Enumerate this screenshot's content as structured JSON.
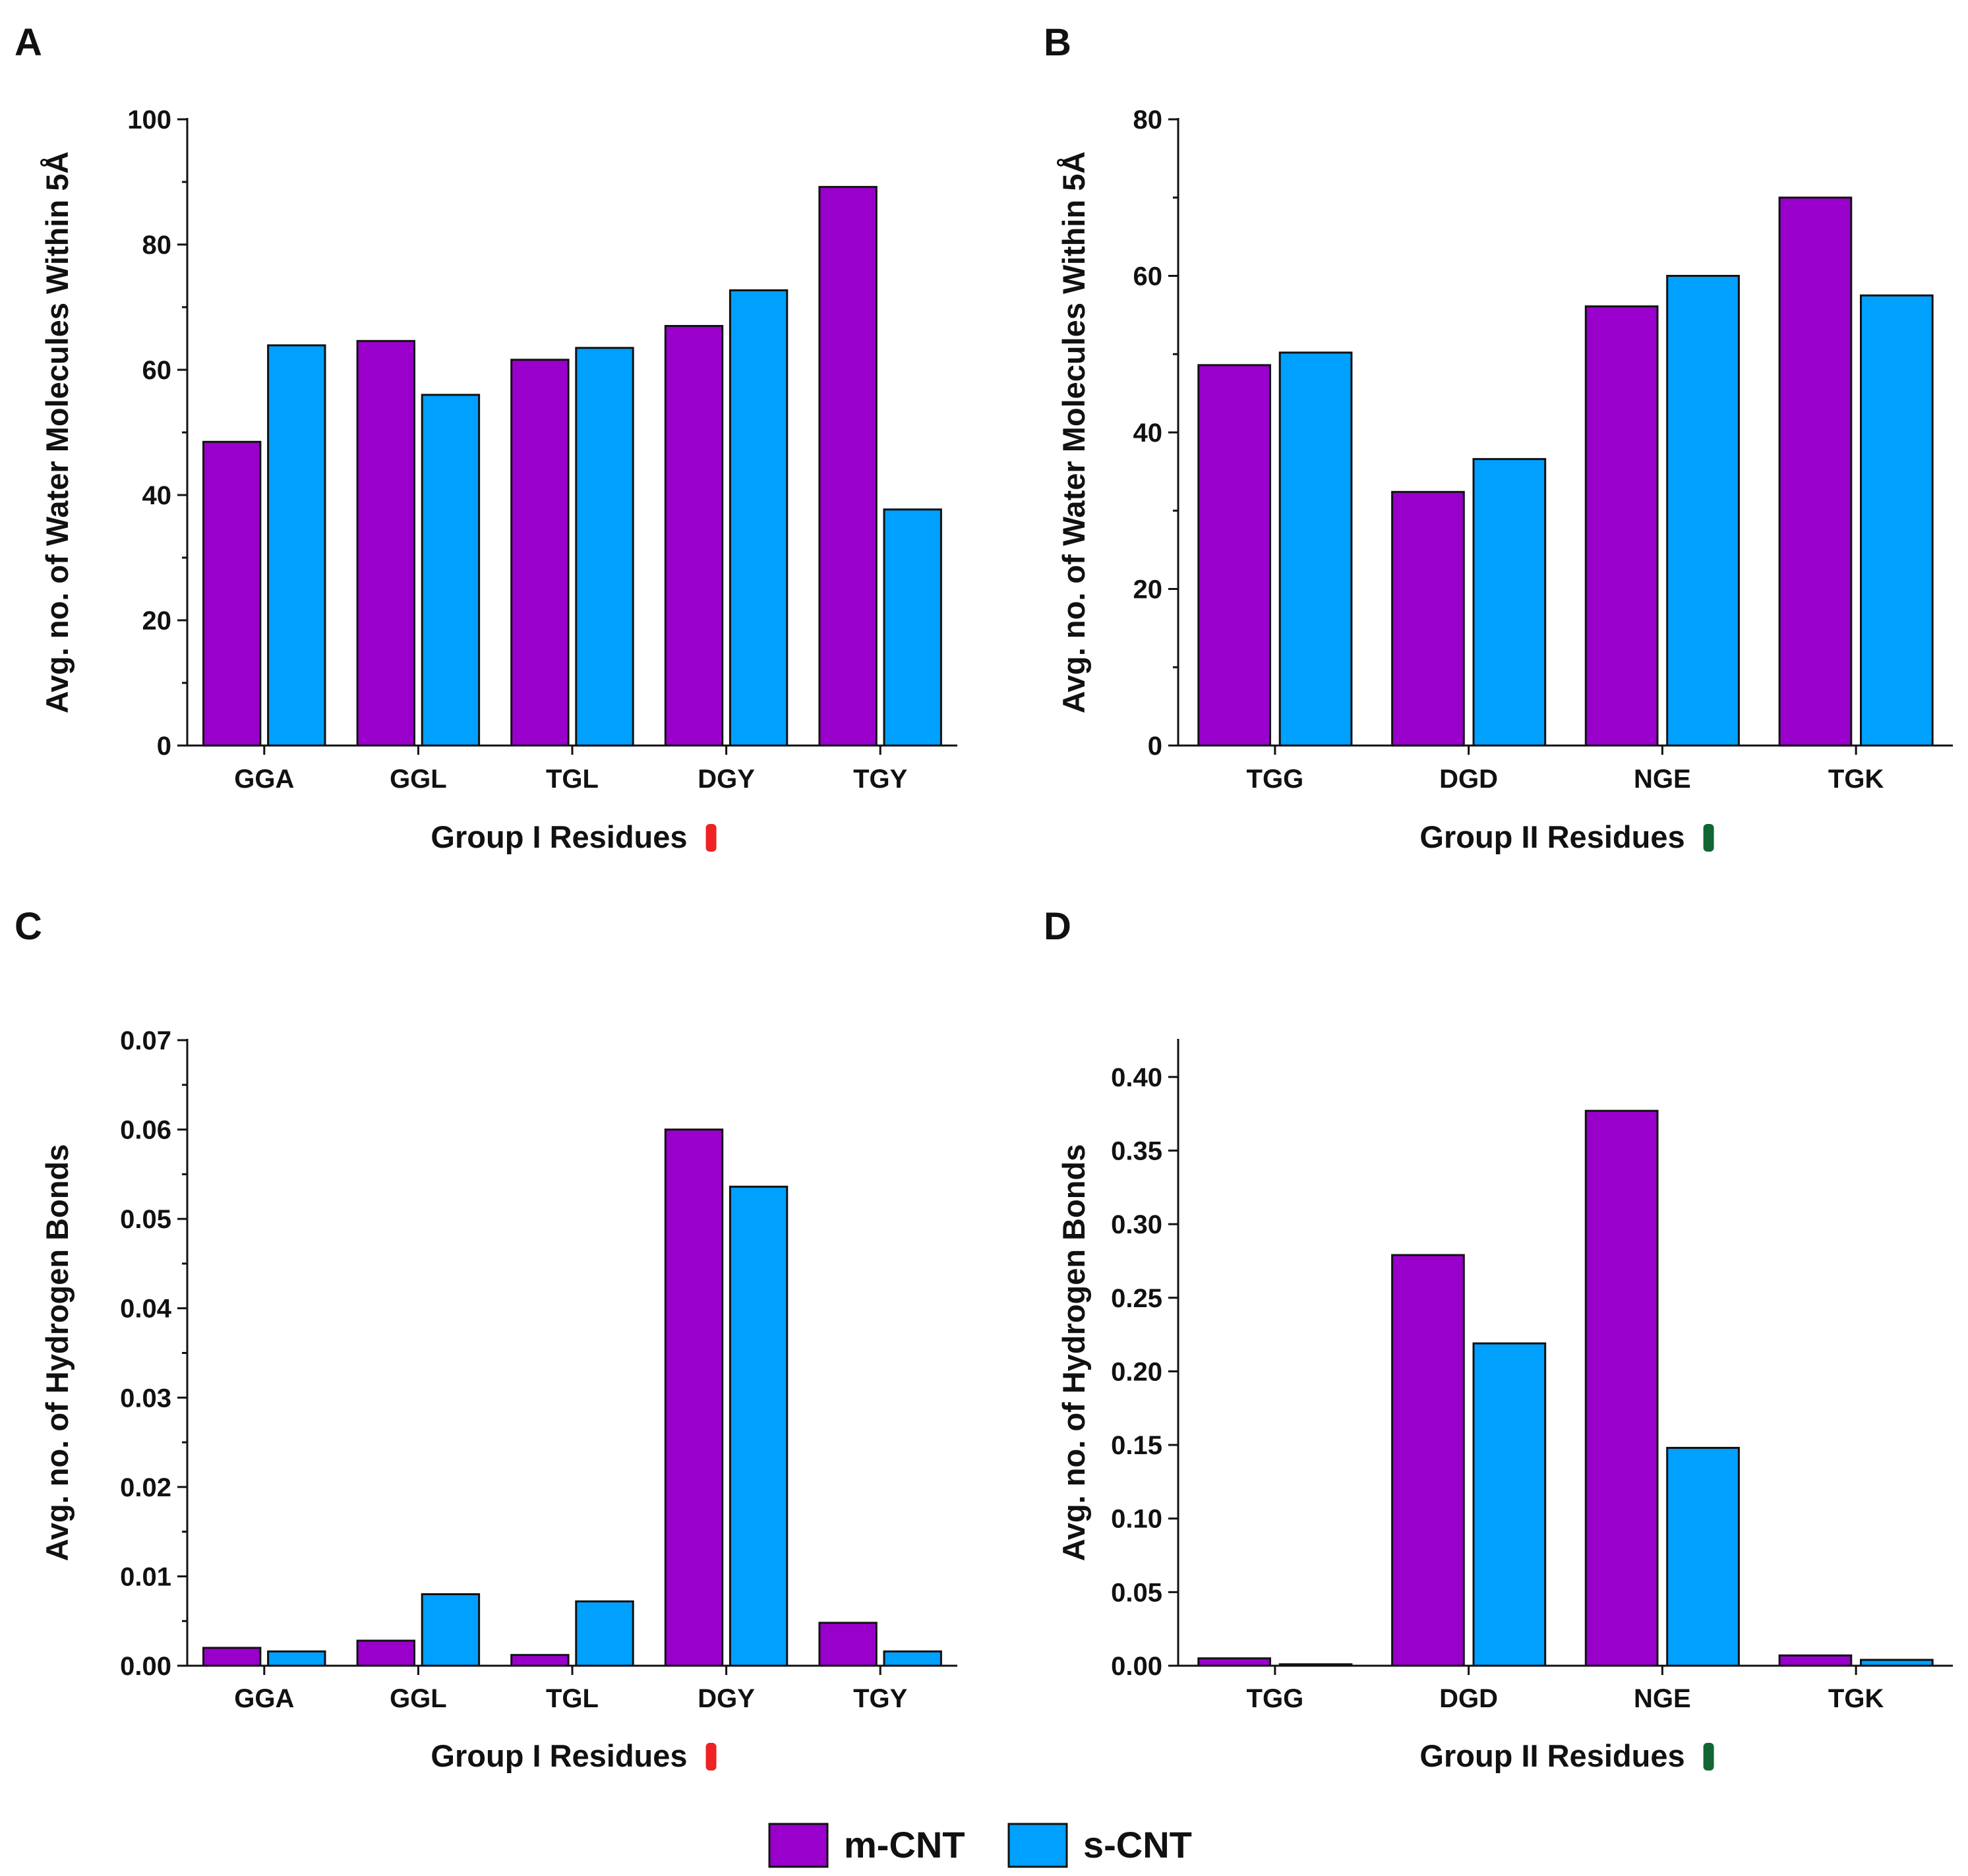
{
  "colors": {
    "m_cnt": "#9900CC",
    "s_cnt": "#00A0FF",
    "group_i_marker": "#EE2222",
    "group_ii_marker": "#116633"
  },
  "legend": {
    "m_label": "m-CNT",
    "s_label": "s-CNT"
  },
  "chart_data": [
    {
      "panel": "A",
      "type": "bar",
      "title": "",
      "xlabel": "Group I Residues",
      "ylabel": "Avg. no. of Water Molecules Within 5Å",
      "categories": [
        "GGA",
        "GGL",
        "TGL",
        "DGY",
        "TGY"
      ],
      "ylim": [
        0,
        100
      ],
      "yticks": [
        0,
        20,
        40,
        60,
        80,
        100
      ],
      "ytick_labels": [
        "0",
        "20",
        "40",
        "60",
        "80",
        "100"
      ],
      "minor_per_major": 1,
      "series": [
        {
          "name": "m-CNT",
          "values": [
            48.5,
            64.6,
            61.6,
            67.0,
            89.2
          ]
        },
        {
          "name": "s-CNT",
          "values": [
            63.9,
            56.0,
            63.5,
            72.7,
            37.7
          ]
        }
      ]
    },
    {
      "panel": "B",
      "type": "bar",
      "title": "",
      "xlabel": "Group II Residues",
      "ylabel": "Avg. no. of Water Molecules Within 5Å",
      "categories": [
        "TGG",
        "DGD",
        "NGE",
        "TGK"
      ],
      "ylim": [
        0,
        80
      ],
      "yticks": [
        0,
        20,
        40,
        60,
        80
      ],
      "ytick_labels": [
        "0",
        "20",
        "40",
        "60",
        "80"
      ],
      "minor_per_major": 1,
      "series": [
        {
          "name": "m-CNT",
          "values": [
            48.6,
            32.4,
            56.1,
            70.0
          ]
        },
        {
          "name": "s-CNT",
          "values": [
            50.2,
            36.6,
            60.0,
            57.5
          ]
        }
      ]
    },
    {
      "panel": "C",
      "type": "bar",
      "title": "",
      "xlabel": "Group I Residues",
      "ylabel": "Avg. no. of Hydrogen Bonds",
      "categories": [
        "GGA",
        "GGL",
        "TGL",
        "DGY",
        "TGY"
      ],
      "ylim": [
        0,
        0.07
      ],
      "yticks": [
        0,
        0.01,
        0.02,
        0.03,
        0.04,
        0.05,
        0.06,
        0.07
      ],
      "ytick_labels": [
        "0.00",
        "0.01",
        "0.02",
        "0.03",
        "0.04",
        "0.05",
        "0.06",
        "0.07"
      ],
      "minor_per_major": 1,
      "series": [
        {
          "name": "m-CNT",
          "values": [
            0.002,
            0.0028,
            0.0012,
            0.06,
            0.0048
          ]
        },
        {
          "name": "s-CNT",
          "values": [
            0.0016,
            0.008,
            0.0072,
            0.0536,
            0.0016
          ]
        }
      ]
    },
    {
      "panel": "D",
      "type": "bar",
      "title": "",
      "xlabel": "Group II Residues",
      "ylabel": "Avg. no. of Hydrogen Bonds",
      "categories": [
        "TGG",
        "DGD",
        "NGE",
        "TGK"
      ],
      "ylim": [
        0,
        0.425
      ],
      "yticks": [
        0,
        0.05,
        0.1,
        0.15,
        0.2,
        0.25,
        0.3,
        0.35,
        0.4
      ],
      "ytick_labels": [
        "0.00",
        "0.05",
        "0.10",
        "0.15",
        "0.20",
        "0.25",
        "0.30",
        "0.35",
        "0.40"
      ],
      "minor_per_major": 0,
      "series": [
        {
          "name": "m-CNT",
          "values": [
            0.005,
            0.279,
            0.377,
            0.007
          ]
        },
        {
          "name": "s-CNT",
          "values": [
            0.001,
            0.219,
            0.148,
            0.004
          ]
        }
      ]
    }
  ]
}
